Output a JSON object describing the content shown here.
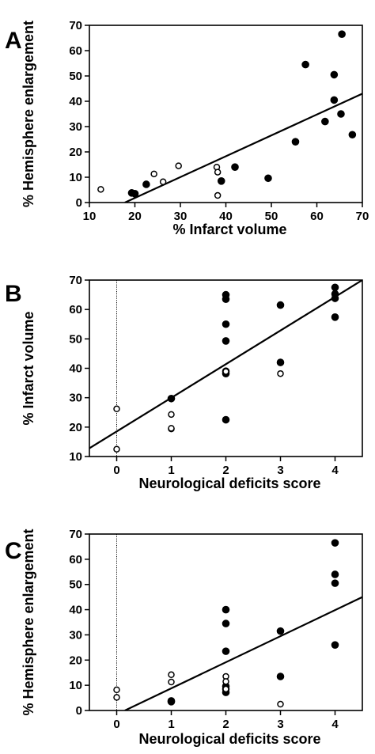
{
  "chart_data": [
    {
      "type": "scatter",
      "panel": "A",
      "xlabel": "% Infarct volume",
      "ylabel": "% Hemisphere enlargement",
      "xlim": [
        10,
        70
      ],
      "ylim": [
        0,
        70
      ],
      "xticks": [
        10,
        20,
        30,
        40,
        50,
        60,
        70
      ],
      "yticks": [
        0,
        10,
        20,
        30,
        40,
        50,
        60,
        70
      ],
      "grid": false,
      "zero_line": false,
      "fit_line": [
        [
          17.8,
          0
        ],
        [
          70,
          43
        ]
      ],
      "series": [
        {
          "marker": "filled",
          "points": [
            [
              19.3,
              3.8
            ],
            [
              20,
              3.5
            ],
            [
              22.5,
              7.2
            ],
            [
              39,
              8.5
            ],
            [
              42,
              14
            ],
            [
              49.3,
              9.6
            ],
            [
              55.3,
              24
            ],
            [
              57.5,
              54.5
            ],
            [
              61.8,
              32
            ],
            [
              63.8,
              50.5
            ],
            [
              63.8,
              40.5
            ],
            [
              65.3,
              35
            ],
            [
              65.5,
              66.5
            ],
            [
              67.8,
              26.8
            ]
          ]
        },
        {
          "marker": "open",
          "points": [
            [
              12.5,
              5.2
            ],
            [
              24.2,
              11.3
            ],
            [
              26.2,
              8.2
            ],
            [
              29.6,
              14.5
            ],
            [
              38,
              14
            ],
            [
              38.2,
              12
            ],
            [
              38.2,
              2.8
            ]
          ]
        }
      ]
    },
    {
      "type": "scatter",
      "panel": "B",
      "xlabel": "Neurological deficits score",
      "ylabel": "% Infarct volume",
      "xlim": [
        -0.5,
        4.5
      ],
      "ylim": [
        10,
        70
      ],
      "xticks": [
        0,
        1,
        2,
        3,
        4
      ],
      "yticks": [
        10,
        20,
        30,
        40,
        50,
        60,
        70
      ],
      "grid": false,
      "zero_line": true,
      "fit_line": [
        [
          -0.5,
          12.8
        ],
        [
          4.5,
          70
        ]
      ],
      "series": [
        {
          "marker": "filled",
          "points": [
            [
              1,
              29.7
            ],
            [
              2,
              65
            ],
            [
              2,
              63.5
            ],
            [
              2,
              55
            ],
            [
              2,
              49.3
            ],
            [
              2,
              39
            ],
            [
              2,
              38.2
            ],
            [
              2,
              22.5
            ],
            [
              3,
              61.5
            ],
            [
              3,
              42
            ],
            [
              4,
              67.5
            ],
            [
              4,
              65.3
            ],
            [
              4,
              63.8
            ],
            [
              4,
              57.4
            ]
          ]
        },
        {
          "marker": "open",
          "points": [
            [
              0,
              26.2
            ],
            [
              0,
              12.5
            ],
            [
              1,
              24.3
            ],
            [
              1,
              19.4
            ],
            [
              1,
              19.6
            ],
            [
              2,
              38.9
            ],
            [
              3,
              38.2
            ]
          ]
        }
      ]
    },
    {
      "type": "scatter",
      "panel": "C",
      "xlabel": "Neurological deficits score",
      "ylabel": "% Hemisphere enlargement",
      "xlim": [
        -0.5,
        4.5
      ],
      "ylim": [
        0,
        70
      ],
      "xticks": [
        0,
        1,
        2,
        3,
        4
      ],
      "yticks": [
        0,
        10,
        20,
        30,
        40,
        50,
        60,
        70
      ],
      "grid": false,
      "zero_line": true,
      "fit_line": [
        [
          0.15,
          0
        ],
        [
          4.5,
          45
        ]
      ],
      "series": [
        {
          "marker": "filled",
          "points": [
            [
              1,
              3.8
            ],
            [
              1,
              3.5
            ],
            [
              2,
              40
            ],
            [
              2,
              34.5
            ],
            [
              2,
              23.5
            ],
            [
              2,
              9.6
            ],
            [
              2,
              8.5
            ],
            [
              2,
              7.2
            ],
            [
              3,
              31.5
            ],
            [
              3,
              13.5
            ],
            [
              4,
              66.5
            ],
            [
              4,
              54
            ],
            [
              4,
              50.5
            ],
            [
              4,
              26
            ]
          ]
        },
        {
          "marker": "open",
          "points": [
            [
              0,
              8.2
            ],
            [
              0,
              5.2
            ],
            [
              1,
              14.2
            ],
            [
              1,
              11.3
            ],
            [
              2,
              13.5
            ],
            [
              2,
              11.5
            ],
            [
              2,
              8.5
            ],
            [
              3,
              2.5
            ]
          ]
        }
      ]
    }
  ]
}
